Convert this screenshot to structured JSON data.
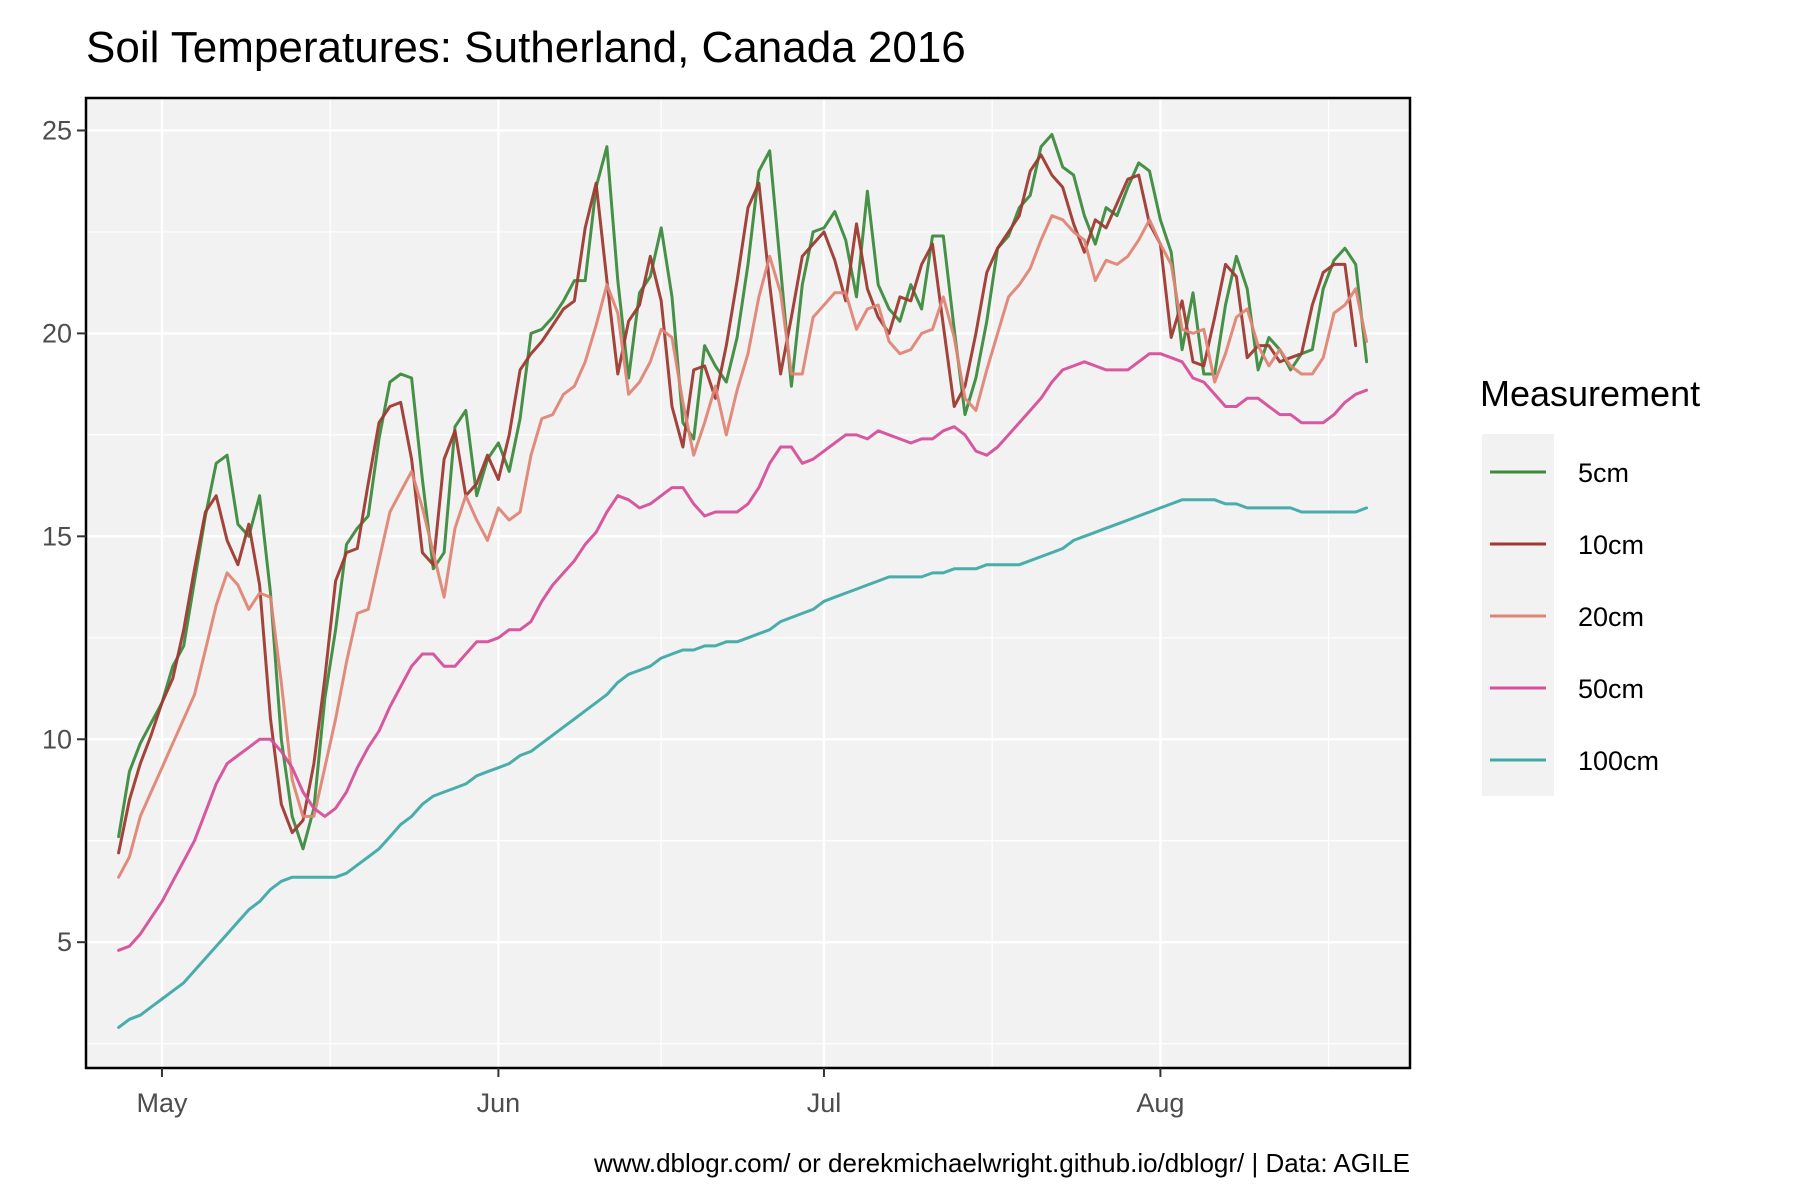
{
  "chart_data": {
    "type": "line",
    "title": "Soil Temperatures: Sutherland, Canada 2016",
    "caption": "www.dblogr.com/ or derekmichaelwright.github.io/dblogr/ | Data: AGILE",
    "xlabel": "",
    "ylabel": "",
    "x_axis": {
      "type": "date",
      "range": [
        "2016-04-24",
        "2016-08-24"
      ],
      "ticks": [
        {
          "date": "2016-05-01",
          "label": "May"
        },
        {
          "date": "2016-06-01",
          "label": "Jun"
        },
        {
          "date": "2016-07-01",
          "label": "Jul"
        },
        {
          "date": "2016-08-01",
          "label": "Aug"
        }
      ]
    },
    "y_axis": {
      "ylim": [
        1.9,
        25.8
      ],
      "ticks": [
        5,
        10,
        15,
        20,
        25
      ]
    },
    "grid": true,
    "legend": {
      "title": "Measurement",
      "placement": "right"
    },
    "start_date": "2016-04-27",
    "series": [
      {
        "name": "5cm",
        "color": "#3d8a3d",
        "values": [
          7.6,
          9.2,
          9.9,
          10.4,
          10.9,
          11.8,
          12.3,
          13.9,
          15.5,
          16.8,
          17.0,
          15.3,
          15.0,
          16.0,
          13.6,
          10.0,
          8.1,
          7.3,
          8.3,
          11.0,
          12.7,
          14.8,
          15.2,
          15.5,
          17.4,
          18.8,
          19.0,
          18.9,
          16.4,
          14.2,
          14.6,
          17.7,
          18.1,
          16.0,
          16.9,
          17.3,
          16.6,
          17.9,
          20.0,
          20.1,
          20.4,
          20.8,
          21.3,
          21.3,
          23.6,
          24.6,
          21.3,
          18.9,
          21.0,
          21.4,
          22.6,
          20.9,
          17.8,
          17.4,
          19.7,
          19.2,
          18.8,
          19.9,
          21.7,
          24.0,
          24.5,
          21.6,
          18.7,
          21.2,
          22.5,
          22.6,
          23.0,
          22.3,
          20.9,
          23.5,
          21.2,
          20.6,
          20.3,
          21.2,
          20.6,
          22.4,
          22.4,
          20.1,
          18.0,
          18.9,
          20.3,
          22.1,
          22.4,
          23.1,
          23.4,
          24.6,
          24.9,
          24.1,
          23.9,
          22.9,
          22.2,
          23.1,
          22.9,
          23.6,
          24.2,
          24.0,
          22.8,
          22.0,
          19.6,
          21.0,
          19.0,
          19.0,
          20.7,
          21.9,
          21.1,
          19.1,
          19.9,
          19.6,
          19.1,
          19.5,
          19.6,
          21.1,
          21.8,
          22.1,
          21.7,
          19.3
        ]
      },
      {
        "name": "10cm",
        "color": "#9e3a32",
        "values": [
          7.2,
          8.5,
          9.4,
          10.1,
          10.9,
          11.5,
          12.7,
          14.2,
          15.6,
          16.0,
          14.9,
          14.3,
          15.3,
          13.8,
          10.5,
          8.4,
          7.7,
          8.0,
          9.4,
          11.5,
          13.9,
          14.6,
          14.7,
          16.3,
          17.8,
          18.2,
          18.3,
          16.9,
          14.6,
          14.3,
          16.9,
          17.6,
          16.0,
          16.3,
          17.0,
          16.4,
          17.5,
          19.1,
          19.5,
          19.8,
          20.2,
          20.6,
          20.8,
          22.6,
          23.7,
          21.3,
          19.0,
          20.3,
          20.7,
          21.9,
          20.8,
          18.2,
          17.2,
          19.1,
          19.2,
          18.4,
          19.7,
          21.3,
          23.1,
          23.7,
          21.2,
          19.0,
          20.4,
          21.9,
          22.2,
          22.5,
          21.8,
          20.8,
          22.7,
          21.1,
          20.4,
          20.0,
          20.9,
          20.8,
          21.7,
          22.2,
          20.2,
          18.2,
          18.7,
          20.0,
          21.5,
          22.1,
          22.5,
          22.9,
          24.0,
          24.4,
          23.9,
          23.6,
          22.7,
          22.0,
          22.8,
          22.6,
          23.2,
          23.8,
          23.9,
          22.7,
          22.2,
          19.9,
          20.8,
          19.3,
          19.2,
          20.4,
          21.7,
          21.4,
          19.4,
          19.7,
          19.7,
          19.3,
          19.4,
          19.5,
          20.7,
          21.5,
          21.7,
          21.7,
          19.7
        ]
      },
      {
        "name": "20cm",
        "color": "#df8576",
        "values": [
          6.6,
          7.1,
          8.1,
          8.7,
          9.3,
          9.9,
          10.5,
          11.1,
          12.2,
          13.3,
          14.1,
          13.8,
          13.2,
          13.6,
          13.5,
          11.4,
          9.0,
          8.1,
          8.1,
          9.3,
          10.5,
          11.9,
          13.1,
          13.2,
          14.4,
          15.6,
          16.1,
          16.6,
          15.7,
          14.6,
          13.5,
          15.2,
          16.0,
          15.4,
          14.9,
          15.7,
          15.4,
          15.6,
          17.0,
          17.9,
          18.0,
          18.5,
          18.7,
          19.3,
          20.2,
          21.2,
          20.5,
          18.5,
          18.8,
          19.3,
          20.1,
          19.9,
          18.3,
          17.0,
          17.8,
          18.7,
          17.5,
          18.6,
          19.5,
          20.9,
          21.9,
          21.0,
          19.0,
          19.0,
          20.4,
          20.7,
          21.0,
          21.0,
          20.1,
          20.6,
          20.7,
          19.8,
          19.5,
          19.6,
          20.0,
          20.1,
          20.9,
          19.9,
          18.4,
          18.1,
          19.1,
          20.0,
          20.9,
          21.2,
          21.6,
          22.3,
          22.9,
          22.8,
          22.5,
          22.3,
          21.3,
          21.8,
          21.7,
          21.9,
          22.3,
          22.8,
          22.2,
          21.7,
          20.1,
          20.0,
          20.1,
          18.8,
          19.5,
          20.4,
          20.6,
          19.7,
          19.2,
          19.6,
          19.2,
          19.0,
          19.0,
          19.4,
          20.5,
          20.7,
          21.1,
          19.8
        ]
      },
      {
        "name": "50cm",
        "color": "#d54f99",
        "values": [
          4.8,
          4.9,
          5.2,
          5.6,
          6.0,
          6.5,
          7.0,
          7.5,
          8.2,
          8.9,
          9.4,
          9.6,
          9.8,
          10.0,
          10.0,
          9.7,
          9.3,
          8.7,
          8.3,
          8.1,
          8.3,
          8.7,
          9.3,
          9.8,
          10.2,
          10.8,
          11.3,
          11.8,
          12.1,
          12.1,
          11.8,
          11.8,
          12.1,
          12.4,
          12.4,
          12.5,
          12.7,
          12.7,
          12.9,
          13.4,
          13.8,
          14.1,
          14.4,
          14.8,
          15.1,
          15.6,
          16.0,
          15.9,
          15.7,
          15.8,
          16.0,
          16.2,
          16.2,
          15.8,
          15.5,
          15.6,
          15.6,
          15.6,
          15.8,
          16.2,
          16.8,
          17.2,
          17.2,
          16.8,
          16.9,
          17.1,
          17.3,
          17.5,
          17.5,
          17.4,
          17.6,
          17.5,
          17.4,
          17.3,
          17.4,
          17.4,
          17.6,
          17.7,
          17.5,
          17.1,
          17.0,
          17.2,
          17.5,
          17.8,
          18.1,
          18.4,
          18.8,
          19.1,
          19.2,
          19.3,
          19.2,
          19.1,
          19.1,
          19.1,
          19.3,
          19.5,
          19.5,
          19.4,
          19.3,
          18.9,
          18.8,
          18.5,
          18.2,
          18.2,
          18.4,
          18.4,
          18.2,
          18.0,
          18.0,
          17.8,
          17.8,
          17.8,
          18.0,
          18.3,
          18.5,
          18.6
        ]
      },
      {
        "name": "100cm",
        "color": "#3fa9a6",
        "values": [
          2.9,
          3.1,
          3.2,
          3.4,
          3.6,
          3.8,
          4.0,
          4.3,
          4.6,
          4.9,
          5.2,
          5.5,
          5.8,
          6.0,
          6.3,
          6.5,
          6.6,
          6.6,
          6.6,
          6.6,
          6.6,
          6.7,
          6.9,
          7.1,
          7.3,
          7.6,
          7.9,
          8.1,
          8.4,
          8.6,
          8.7,
          8.8,
          8.9,
          9.1,
          9.2,
          9.3,
          9.4,
          9.6,
          9.7,
          9.9,
          10.1,
          10.3,
          10.5,
          10.7,
          10.9,
          11.1,
          11.4,
          11.6,
          11.7,
          11.8,
          12.0,
          12.1,
          12.2,
          12.2,
          12.3,
          12.3,
          12.4,
          12.4,
          12.5,
          12.6,
          12.7,
          12.9,
          13.0,
          13.1,
          13.2,
          13.4,
          13.5,
          13.6,
          13.7,
          13.8,
          13.9,
          14.0,
          14.0,
          14.0,
          14.0,
          14.1,
          14.1,
          14.2,
          14.2,
          14.2,
          14.3,
          14.3,
          14.3,
          14.3,
          14.4,
          14.5,
          14.6,
          14.7,
          14.9,
          15.0,
          15.1,
          15.2,
          15.3,
          15.4,
          15.5,
          15.6,
          15.7,
          15.8,
          15.9,
          15.9,
          15.9,
          15.9,
          15.8,
          15.8,
          15.7,
          15.7,
          15.7,
          15.7,
          15.7,
          15.6,
          15.6,
          15.6,
          15.6,
          15.6,
          15.6,
          15.7
        ]
      }
    ]
  }
}
